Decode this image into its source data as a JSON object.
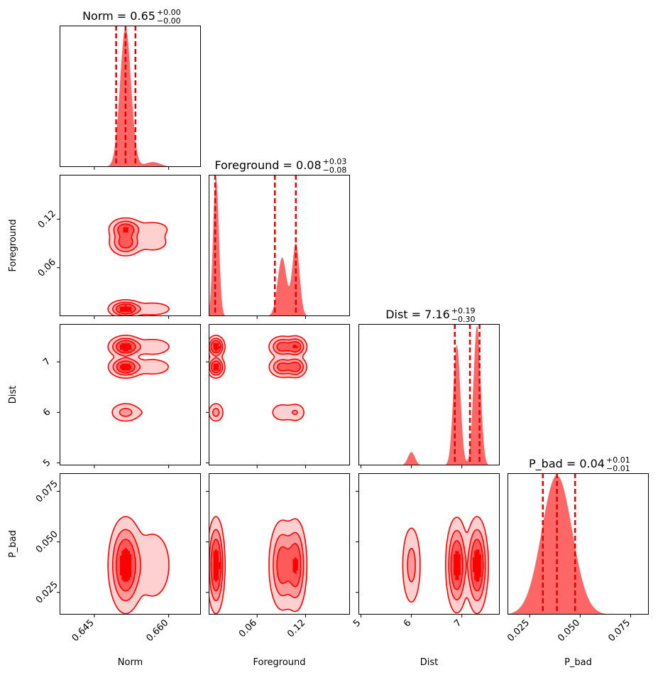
{
  "chart_data": {
    "type": "corner",
    "parameters": [
      {
        "name": "Norm",
        "label": "Norm",
        "title": "Norm = 0.65",
        "err_plus": "+0.00",
        "err_minus": "−0.00",
        "range": [
          0.638,
          0.6665
        ],
        "ticks": [
          0.645,
          0.66
        ],
        "tick_labels": [
          "0.645",
          "0.660"
        ],
        "quantiles": [
          0.6494,
          0.6513,
          0.6533
        ],
        "peaks": [
          {
            "mu": 0.6513,
            "sigma": 0.0011,
            "w": 1.0
          },
          {
            "mu": 0.6568,
            "sigma": 0.0016,
            "w": 0.035
          }
        ]
      },
      {
        "name": "Foreground",
        "label": "Foreground",
        "title": "Foreground = 0.08",
        "err_plus": "+0.03",
        "err_minus": "−0.08",
        "range": [
          0.0,
          0.175
        ],
        "ticks": [
          0.06,
          0.12
        ],
        "tick_labels": [
          "0.06",
          "0.12"
        ],
        "quantiles": [
          0.008,
          0.082,
          0.108
        ],
        "peaks": [
          {
            "mu": 0.009,
            "sigma": 0.0035,
            "w": 1.0
          },
          {
            "mu": 0.091,
            "sigma": 0.0055,
            "w": 0.42
          },
          {
            "mu": 0.108,
            "sigma": 0.0045,
            "w": 0.52
          }
        ]
      },
      {
        "name": "Dist",
        "label": "Dist",
        "title": "Dist = 7.16",
        "err_plus": "+0.19",
        "err_minus": "−0.30",
        "range": [
          4.95,
          7.75
        ],
        "ticks": [
          5,
          6,
          7
        ],
        "tick_labels": [
          "5",
          "6",
          "7"
        ],
        "quantiles": [
          6.86,
          7.16,
          7.35
        ],
        "peaks": [
          {
            "mu": 6.0,
            "sigma": 0.07,
            "w": 0.09
          },
          {
            "mu": 6.9,
            "sigma": 0.07,
            "w": 0.82
          },
          {
            "mu": 7.3,
            "sigma": 0.07,
            "w": 0.95
          }
        ]
      },
      {
        "name": "P_bad",
        "label": "P_bad",
        "title": "P_bad = 0.04",
        "err_plus": "+0.01",
        "err_minus": "−0.01",
        "range": [
          0.014,
          0.084
        ],
        "ticks": [
          0.025,
          0.05,
          0.075
        ],
        "tick_labels": [
          "0.025",
          "0.050",
          "0.075"
        ],
        "quantiles": [
          0.0315,
          0.0385,
          0.0475
        ],
        "peaks": [
          {
            "mu": 0.0385,
            "sigma": 0.0075,
            "w": 1.0
          }
        ]
      }
    ],
    "color": "#ff0000",
    "contour_levels": 4,
    "grid": false,
    "legend": "none"
  }
}
